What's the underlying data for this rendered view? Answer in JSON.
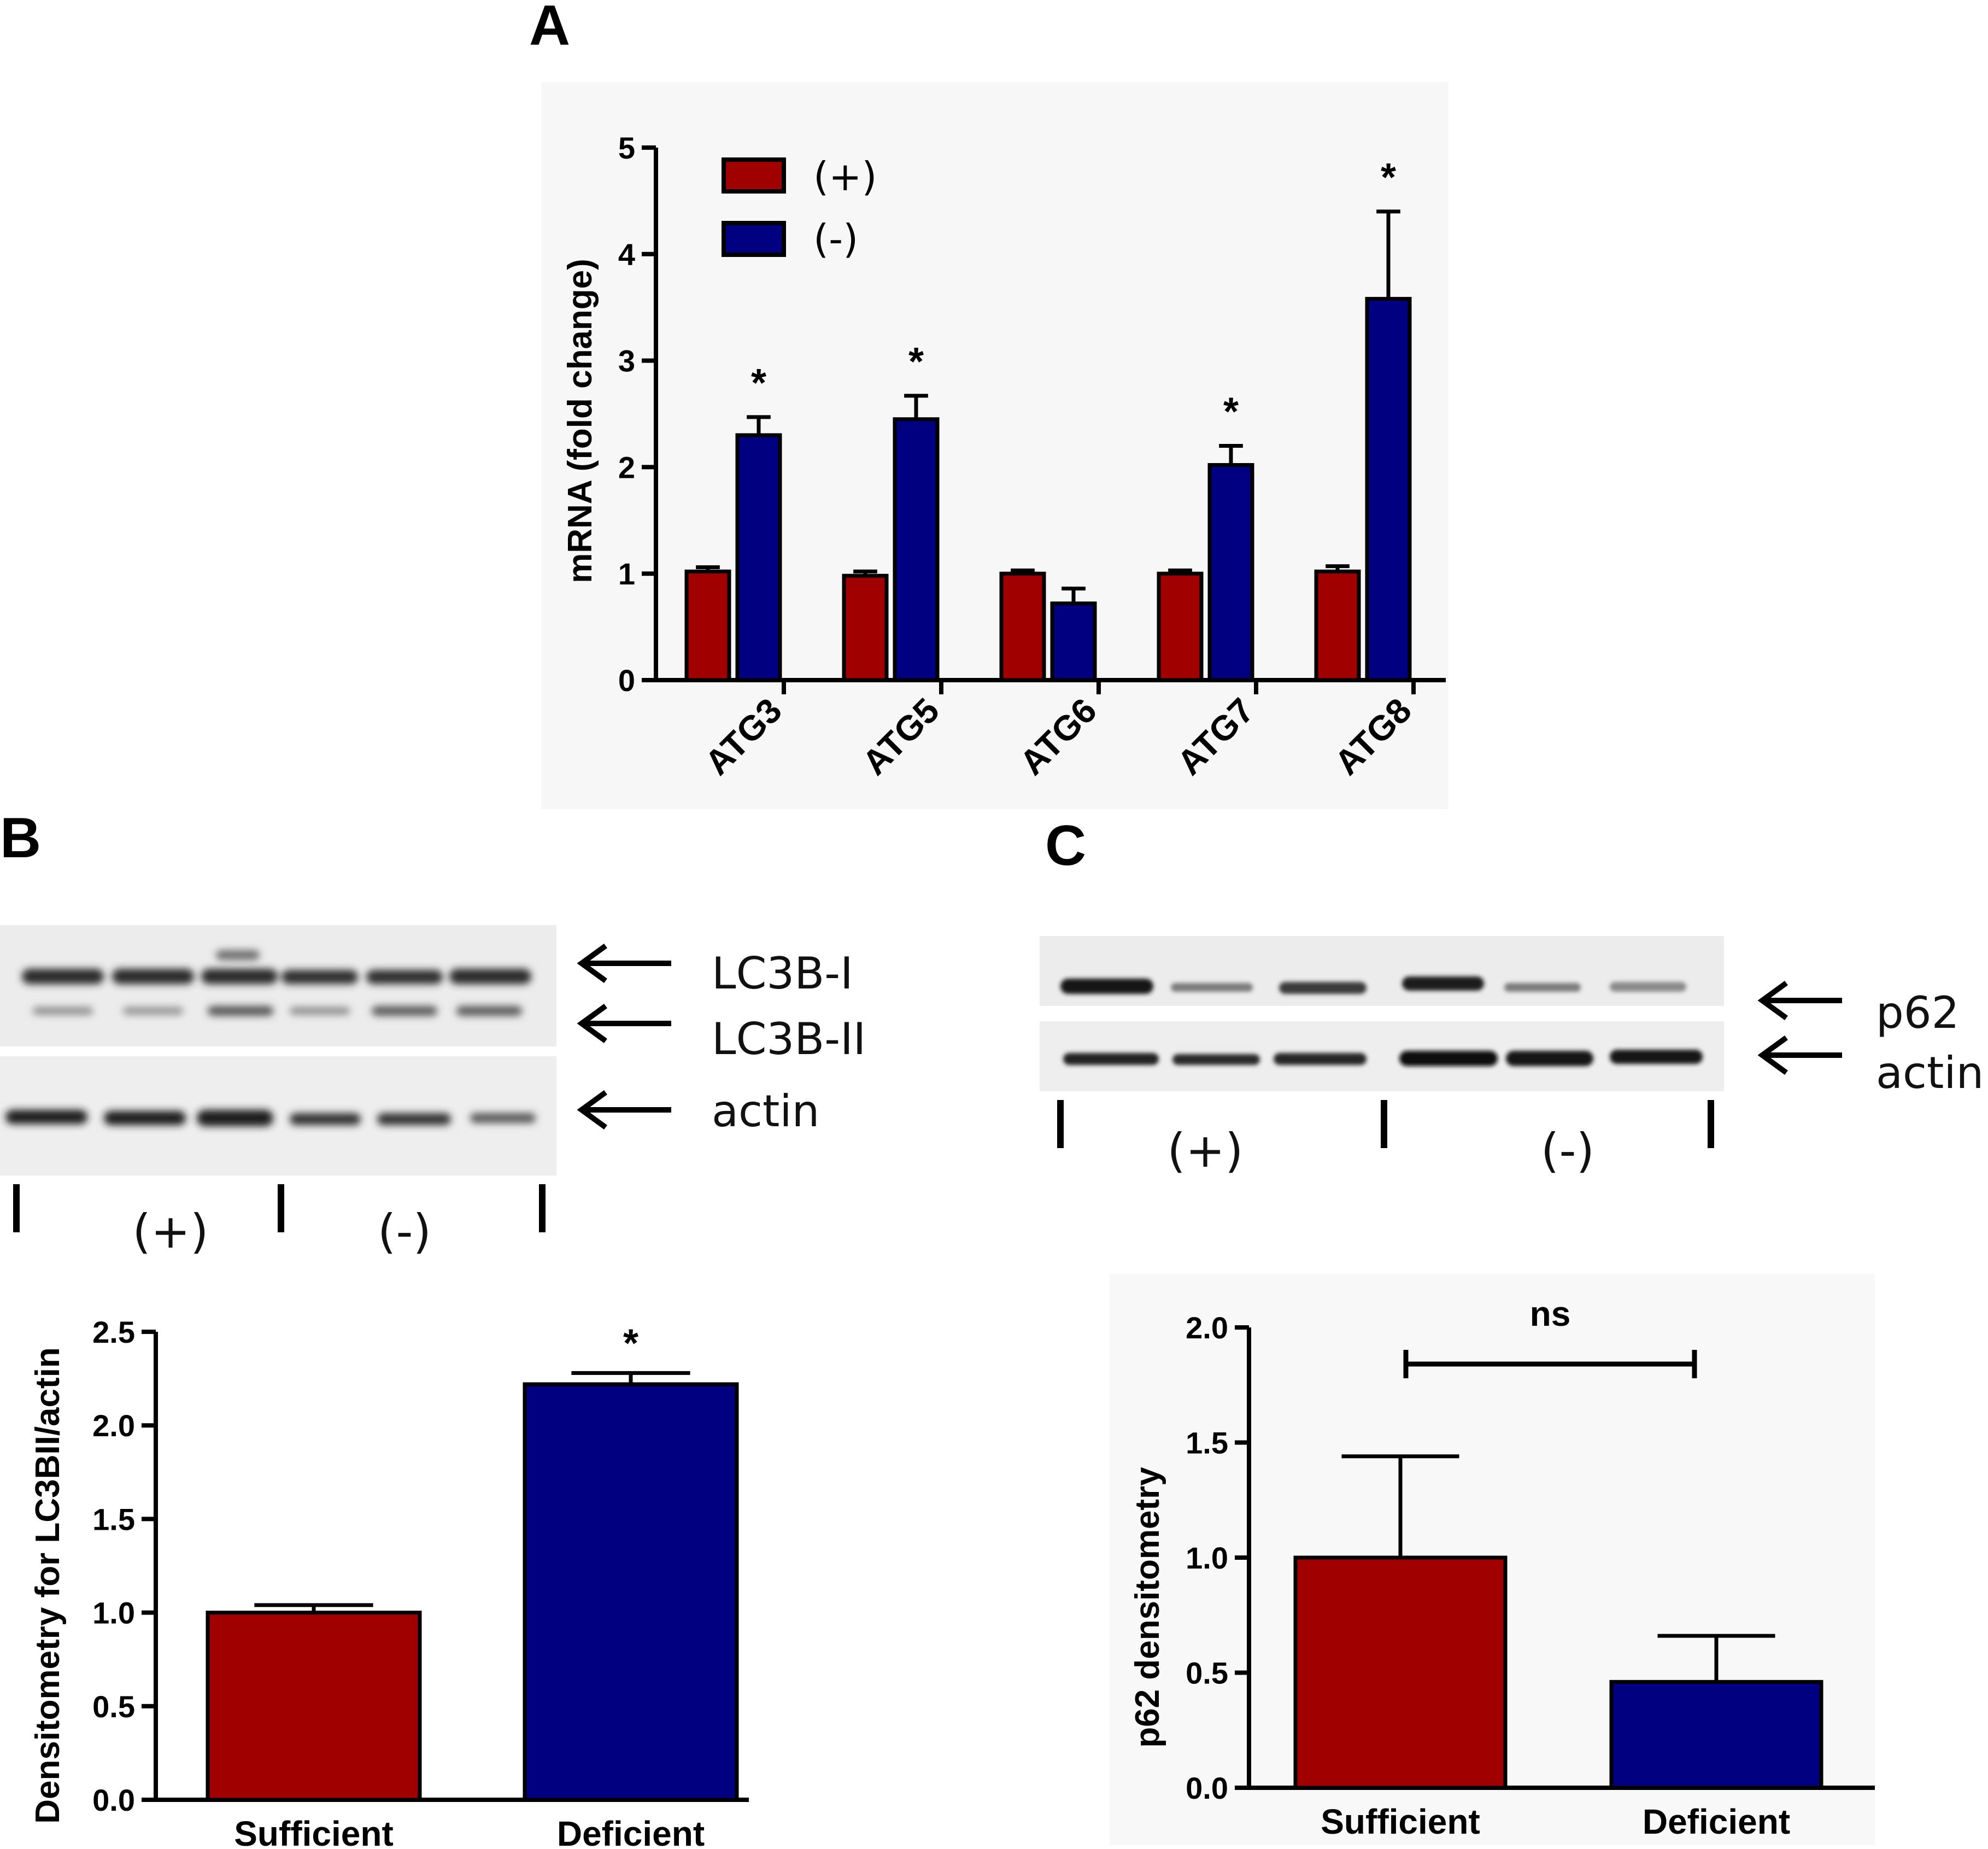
{
  "panels": {
    "a": "A",
    "b": "B",
    "c": "C"
  },
  "colors": {
    "sufficient": "#a00000",
    "deficient": "#000080",
    "axis": "#000000"
  },
  "chart_data": [
    {
      "id": "A",
      "type": "bar",
      "ylabel": "mRNA (fold change)",
      "ylim": [
        0,
        5
      ],
      "yticks": [
        "0",
        "1",
        "2",
        "3",
        "4",
        "5"
      ],
      "categories": [
        "ATG3",
        "ATG5",
        "ATG6",
        "ATG7",
        "ATG8"
      ],
      "legend": [
        "(+)",
        "(-)"
      ],
      "legend_position": "top-left",
      "series": [
        {
          "name": "(+)",
          "values": [
            1.02,
            0.98,
            1.0,
            1.0,
            1.02
          ],
          "errors": [
            0.04,
            0.04,
            0.03,
            0.03,
            0.05
          ]
        },
        {
          "name": "(-)",
          "values": [
            2.3,
            2.45,
            0.72,
            2.02,
            3.58
          ],
          "errors": [
            0.17,
            0.22,
            0.14,
            0.18,
            0.82
          ]
        }
      ],
      "annotations": [
        "*",
        "*",
        "",
        "*",
        "*"
      ]
    },
    {
      "id": "B",
      "type": "bar",
      "ylabel": "Densitometry for LC3BII/actin",
      "ylim": [
        0,
        2.5
      ],
      "yticks": [
        "0.0",
        "0.5",
        "1.0",
        "1.5",
        "2.0",
        "2.5"
      ],
      "categories": [
        "Sufficient",
        "Deficient"
      ],
      "values": [
        1.0,
        2.22
      ],
      "errors": [
        0.04,
        0.06
      ],
      "annotations": [
        "",
        "*"
      ]
    },
    {
      "id": "C",
      "type": "bar",
      "ylabel": "p62 densitometry",
      "ylim": [
        0,
        2.0
      ],
      "yticks": [
        "0.0",
        "0.5",
        "1.0",
        "1.5",
        "2.0"
      ],
      "categories": [
        "Sufficient",
        "Deficient"
      ],
      "values": [
        1.0,
        0.46
      ],
      "errors": [
        0.44,
        0.2
      ],
      "bracket_label": "ns"
    }
  ],
  "blot_b": {
    "labels": [
      "LC3B-I",
      "LC3B-II",
      "actin"
    ],
    "groups": [
      "(+)",
      "(-)"
    ]
  },
  "blot_c": {
    "labels": [
      "p62",
      "actin"
    ],
    "groups": [
      "(+)",
      "(-)"
    ]
  }
}
